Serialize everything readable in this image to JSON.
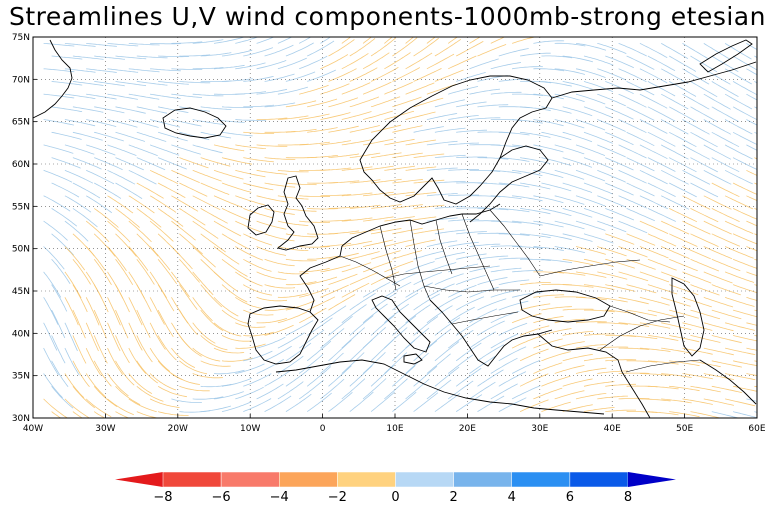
{
  "title": "Streamlines U,V wind components-1000mb-strong etesian",
  "map": {
    "lon_range": [
      -40,
      60
    ],
    "lat_range": [
      30,
      75
    ],
    "lat_labels": [
      "75N",
      "70N",
      "65N",
      "60N",
      "55N",
      "50N",
      "45N",
      "40N",
      "35N",
      "30N"
    ],
    "lat_values": [
      75,
      70,
      65,
      60,
      55,
      50,
      45,
      40,
      35,
      30
    ],
    "lon_labels": [
      "40W",
      "30W",
      "20W",
      "10W",
      "0",
      "10E",
      "20E",
      "30E",
      "40E",
      "50E",
      "60E"
    ],
    "lon_values": [
      -40,
      -30,
      -20,
      -10,
      0,
      10,
      20,
      30,
      40,
      50,
      60
    ],
    "grid": "dotted",
    "colors": {
      "positive": "#9ec8e8",
      "negative": "#f7c46c",
      "coast": "#000000"
    }
  },
  "colorbar": {
    "labels": [
      "-8",
      "-6",
      "-4",
      "-2",
      "0",
      "2",
      "4",
      "6",
      "8"
    ],
    "colors": [
      "#e41a1c",
      "#f0483a",
      "#f87a6a",
      "#fca55a",
      "#ffd27f",
      "#b7d8f5",
      "#78b4ec",
      "#2b8ff2",
      "#0a5ae8",
      "#0000c8"
    ]
  }
}
